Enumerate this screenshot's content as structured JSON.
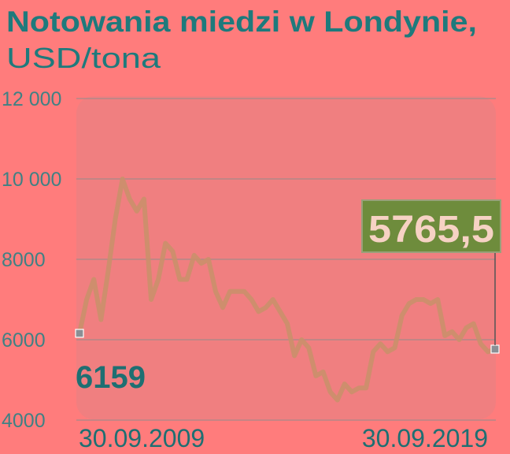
{
  "chart_data": {
    "type": "line",
    "title": "Notowania miedzi w Londynie,",
    "subtitle": "USD/tona",
    "categories": [
      "30.09.2009",
      null,
      null,
      null,
      null,
      null,
      null,
      null,
      null,
      null,
      null,
      null,
      null,
      null,
      null,
      null,
      null,
      null,
      null,
      null,
      null,
      null,
      null,
      null,
      null,
      null,
      null,
      null,
      null,
      null,
      null,
      null,
      null,
      null,
      null,
      null,
      null,
      null,
      null,
      null,
      null,
      null,
      null,
      null,
      null,
      null,
      null,
      null,
      null,
      null,
      null,
      null,
      null,
      null,
      null,
      null,
      null,
      null,
      "30.09.2019"
    ],
    "series": [
      {
        "color": "#c8906a",
        "values": [
          6159,
          7000,
          7500,
          6500,
          7700,
          9000,
          10000,
          9500,
          9200,
          9500,
          7000,
          7500,
          8400,
          8200,
          7500,
          7500,
          8100,
          7900,
          8000,
          7200,
          6800,
          7200,
          7200,
          7200,
          7000,
          6700,
          6800,
          7000,
          6700,
          6400,
          5600,
          6000,
          5800,
          5100,
          5200,
          4700,
          4500,
          4900,
          4700,
          4800,
          4800,
          5700,
          5900,
          5700,
          5800,
          6600,
          6900,
          7000,
          7000,
          6900,
          7000,
          6100,
          6200,
          6000,
          6300,
          6400,
          5900,
          5700,
          5765.5
        ],
        "value_labels": [
          null,
          null,
          null,
          null,
          null,
          null,
          null,
          null,
          null,
          null,
          null,
          null,
          null,
          null,
          null,
          null,
          null,
          null,
          null,
          null,
          null,
          null,
          null,
          null,
          null,
          null,
          null,
          null,
          null,
          null,
          null,
          null,
          null,
          null,
          null,
          null,
          null,
          null,
          null,
          null,
          null,
          null,
          null,
          null,
          null,
          null,
          null,
          null,
          null,
          null,
          null,
          null,
          null,
          null,
          null,
          null,
          null,
          null,
          "5765,5"
        ]
      }
    ],
    "ylim": [
      4000,
      12000
    ],
    "yticks": [
      4000,
      6000,
      8000,
      {
        "value": 10000,
        "label": "10 000"
      },
      {
        "value": 12000,
        "label": "12 000"
      }
    ],
    "grid": true
  }
}
